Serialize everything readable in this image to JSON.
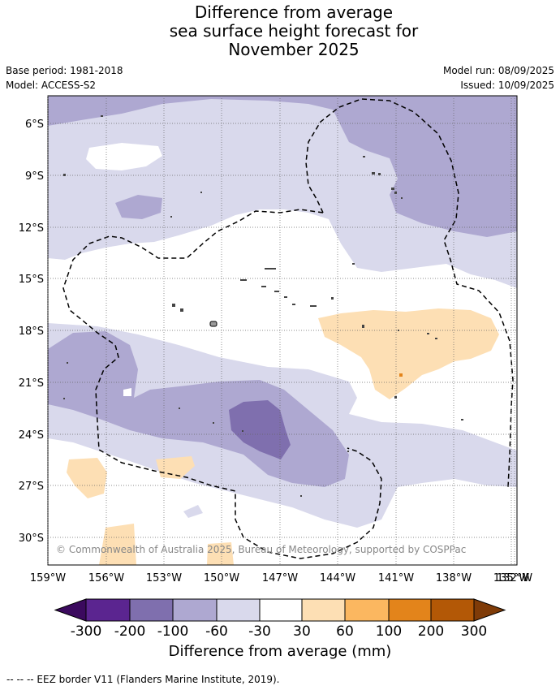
{
  "title": {
    "line1": "Difference from average",
    "line2": "sea surface height forecast for",
    "line3": "November 2025"
  },
  "meta": {
    "base_period": "Base period: 1981-2018",
    "model": "Model: ACCESS-S2",
    "model_run": "Model run: 08/09/2025",
    "issued": "Issued: 10/09/2025"
  },
  "map": {
    "lat_labels": [
      "6°S",
      "9°S",
      "12°S",
      "15°S",
      "18°S",
      "21°S",
      "24°S",
      "27°S",
      "30°S"
    ],
    "lon_labels": [
      "159°W",
      "156°W",
      "153°W",
      "150°W",
      "147°W",
      "144°W",
      "141°W",
      "138°W",
      "135°W",
      "132°W"
    ],
    "copyright": "© Commonwealth of Australia 2025, Bureau of Meteorology, supported by COSPPac",
    "colors": {
      "land": "#9a9a9a",
      "grid": "#666666"
    }
  },
  "colorbar": {
    "title": "Difference from average (mm)",
    "ticks": [
      "-300",
      "-200",
      "-100",
      "-60",
      "-30",
      "30",
      "60",
      "100",
      "200",
      "300"
    ],
    "colors": [
      "#3b0a5e",
      "#5b2590",
      "#7f6fae",
      "#aea8d1",
      "#d9d9ec",
      "#ffffff",
      "#fddfb4",
      "#fbb760",
      "#e3841b",
      "#b35806",
      "#7f3b08"
    ]
  },
  "eez_note": "--  --  -- EEZ border V11 (Flanders Marine Institute, 2019)."
}
